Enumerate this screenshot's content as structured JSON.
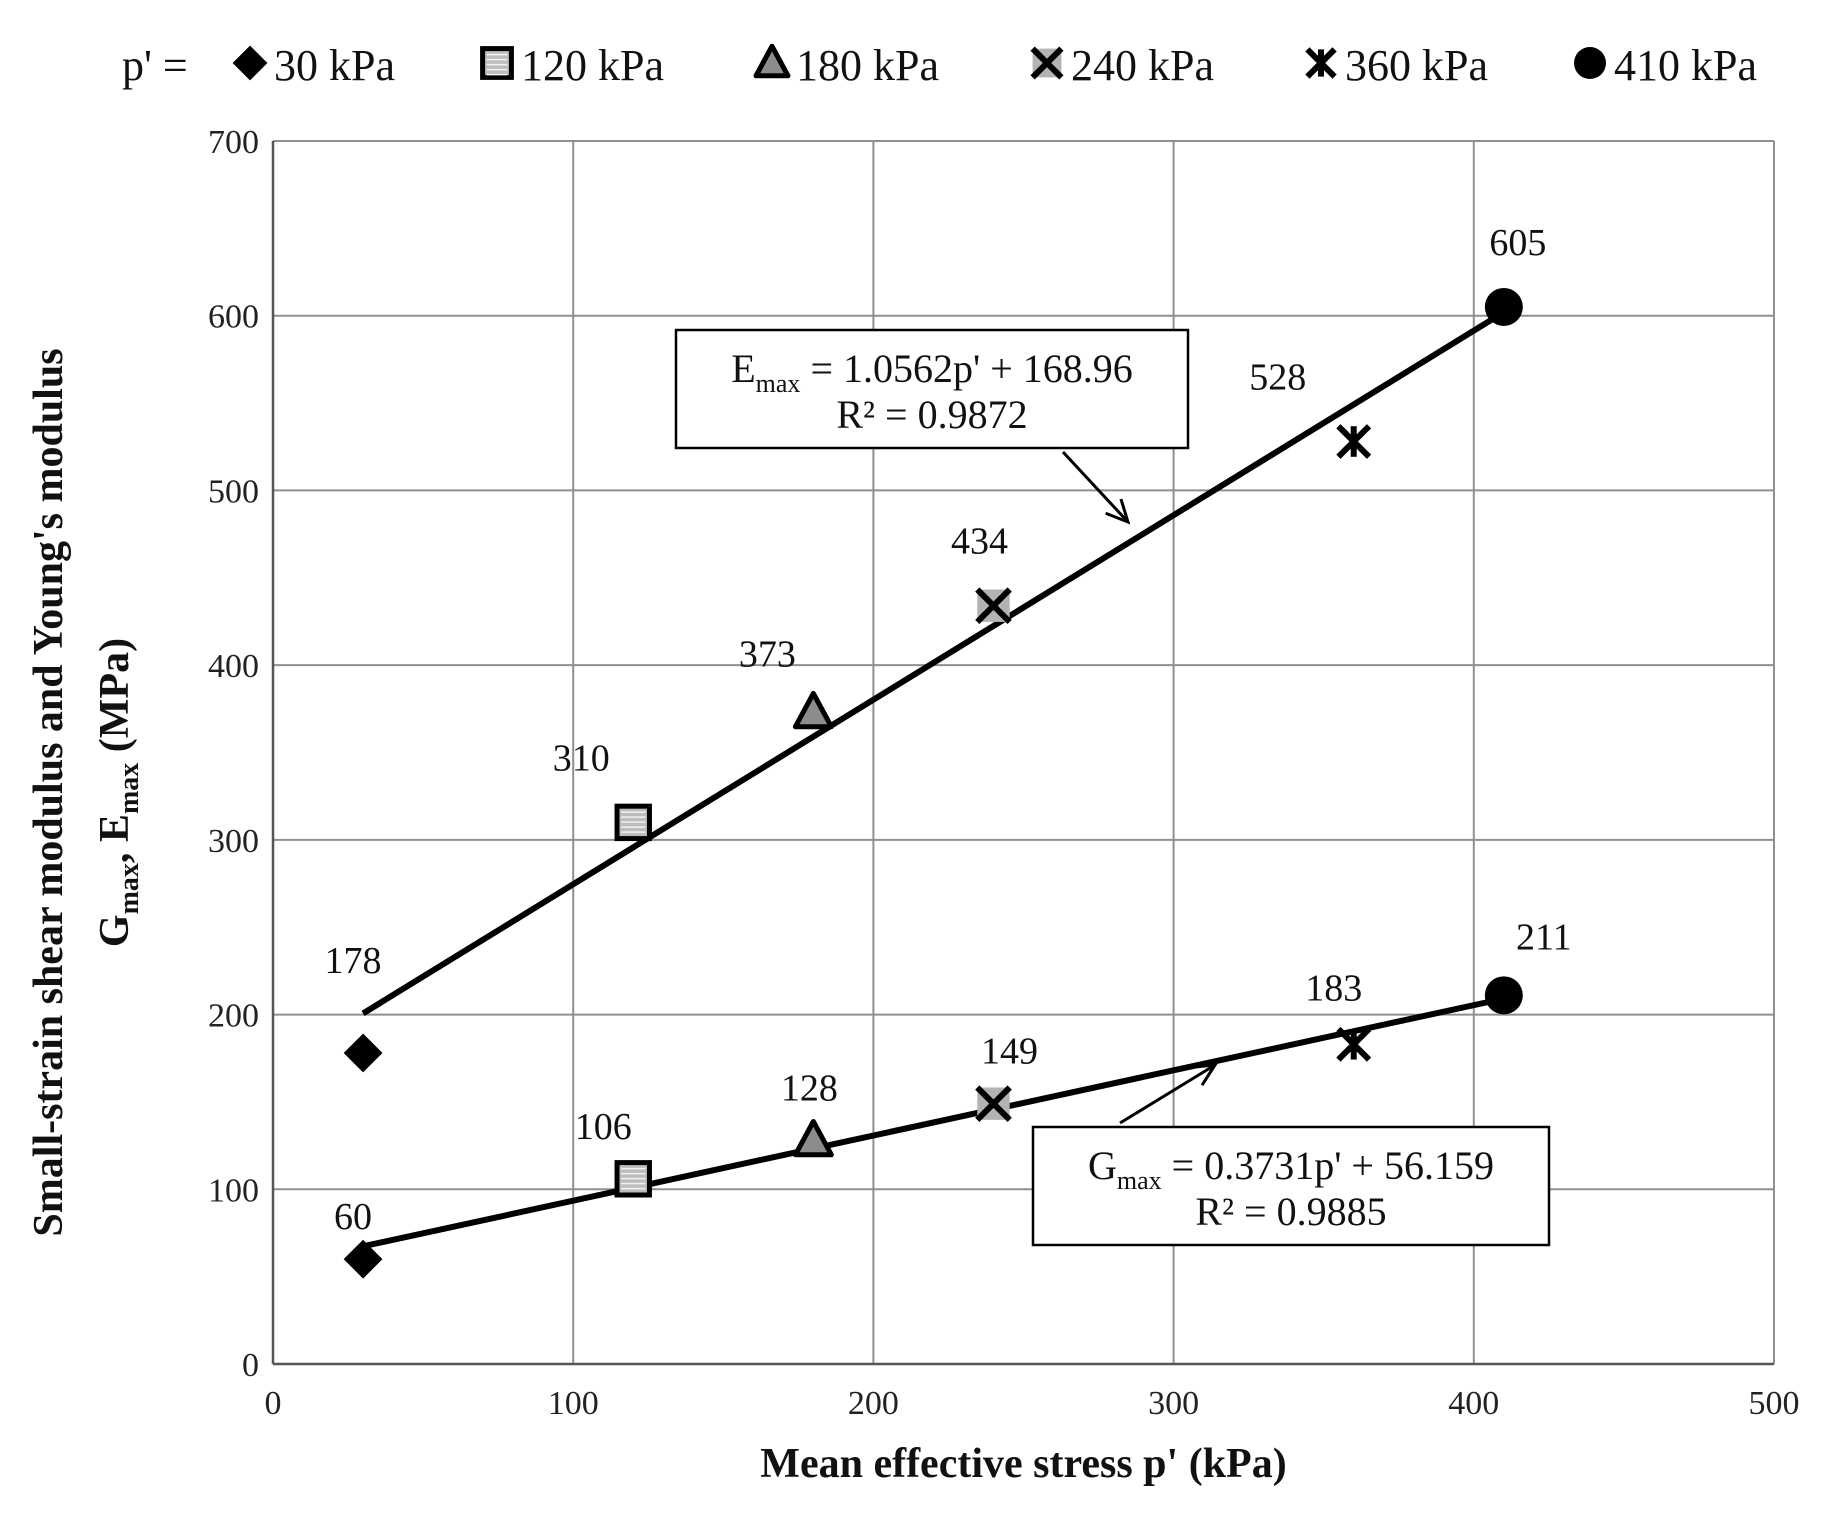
{
  "chart_data": {
    "type": "scatter",
    "xlabel": "Mean effective  stress p' (kPa)",
    "ylabel_line1": "Small-strain shear modulus and Young's modulus",
    "ylabel_line2_parts": [
      "G",
      "max",
      ", E",
      "max",
      " (MPa)"
    ],
    "xlim": [
      0,
      500
    ],
    "ylim": [
      0,
      700
    ],
    "xticks": [
      0,
      100,
      200,
      300,
      400,
      500
    ],
    "yticks": [
      0,
      100,
      200,
      300,
      400,
      500,
      600,
      700
    ],
    "grid": true,
    "legend_placement": "top",
    "legend_prefix": "p' =",
    "groups": [
      {
        "name": "30 kPa",
        "x": 30,
        "marker": "diamond",
        "fill": "#000000",
        "E": 178,
        "G": 60
      },
      {
        "name": "120 kPa",
        "x": 120,
        "marker": "square-striped",
        "fill": "#bdbdbd",
        "E": 310,
        "G": 106
      },
      {
        "name": "180 kPa",
        "x": 180,
        "marker": "triangle",
        "fill": "#8c8c8c",
        "E": 373,
        "G": 128
      },
      {
        "name": "240 kPa",
        "x": 240,
        "marker": "x-box",
        "fill": "#b3b3b3",
        "E": 434,
        "G": 149
      },
      {
        "name": "360 kPa",
        "x": 360,
        "marker": "asterisk",
        "fill": "#000000",
        "E": 528,
        "G": 183
      },
      {
        "name": "410 kPa",
        "x": 410,
        "marker": "circle",
        "fill": "#000000",
        "E": 605,
        "G": 211
      }
    ],
    "trendlines": [
      {
        "series": "E",
        "slope": 1.0562,
        "intercept": 168.96,
        "x_range": [
          30,
          410
        ],
        "label_main": "E",
        "label_sub": "max",
        "label_rest": " = 1.0562p' + 168.96",
        "r2": "R² = 0.9872"
      },
      {
        "series": "G",
        "slope": 0.3731,
        "intercept": 56.159,
        "x_range": [
          30,
          410
        ],
        "label_main": "G",
        "label_sub": "max",
        "label_rest": " = 0.3731p' + 56.159",
        "r2": "R² = 0.9885"
      }
    ]
  }
}
